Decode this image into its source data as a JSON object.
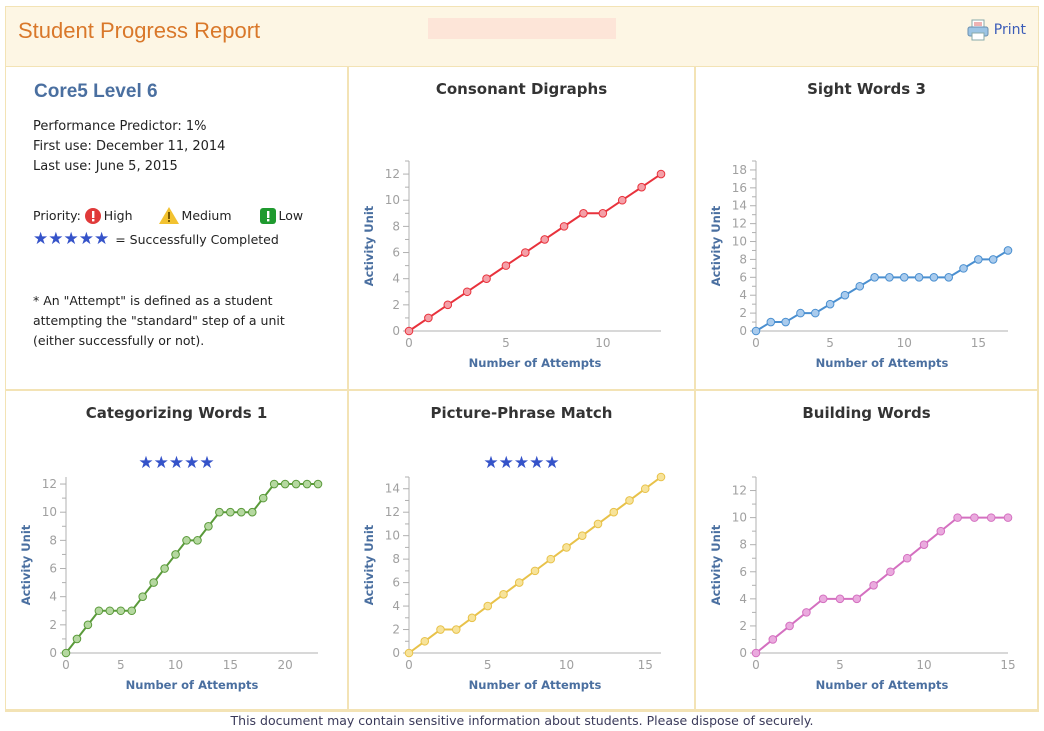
{
  "header": {
    "title": "Student Progress Report",
    "print_label": "Print",
    "print_icon": "printer-icon"
  },
  "summary": {
    "program": "Core5 Level 6",
    "predictor": "Performance Predictor:  1%",
    "first_use": "First use: December 11, 2014",
    "last_use": "Last use: June 5, 2015",
    "priority_label": "Priority:",
    "priority_high": "High",
    "priority_medium": "Medium",
    "priority_low": "Low",
    "stars": "★★★★★",
    "completed_label": "= Successfully Completed",
    "note_1": "* An \"Attempt\" is defined as a student",
    "note_2": "attempting the \"standard\" step of a unit",
    "note_3": "(either successfully or not).",
    "colors": {
      "high": "#e03a3a",
      "medium": "#f2c230",
      "low": "#1f9a2f",
      "stars": "#3553c9"
    }
  },
  "footer": "This document may contain sensitive information about students. Please dispose of securely.",
  "chart_data": [
    {
      "type": "line",
      "title": "Consonant Digraphs",
      "xlabel": "Number of Attempts",
      "ylabel": "Activity Unit",
      "completed": false,
      "x": [
        0,
        1,
        2,
        3,
        4,
        5,
        6,
        7,
        8,
        9,
        10,
        11,
        12,
        13
      ],
      "values": [
        0,
        1,
        2,
        3,
        4,
        5,
        6,
        7,
        8,
        9,
        9,
        10,
        11,
        12
      ],
      "xlim": [
        0,
        13
      ],
      "ylim": [
        0,
        13
      ],
      "xticks": [
        0,
        5,
        10
      ],
      "yticks": [
        0,
        2,
        4,
        6,
        8,
        10,
        12
      ],
      "color": "#e8323c",
      "marker": "#f4a0a8"
    },
    {
      "type": "line",
      "title": "Sight Words 3",
      "xlabel": "Number of Attempts",
      "ylabel": "Activity Unit",
      "completed": false,
      "x": [
        0,
        1,
        2,
        3,
        4,
        5,
        6,
        7,
        8,
        9,
        10,
        11,
        12,
        13,
        14,
        15,
        16,
        17
      ],
      "values": [
        0,
        1,
        1,
        2,
        2,
        3,
        4,
        5,
        6,
        6,
        6,
        6,
        6,
        6,
        7,
        8,
        8,
        9
      ],
      "xlim": [
        0,
        17
      ],
      "ylim": [
        0,
        19
      ],
      "xticks": [
        0,
        5,
        10,
        15
      ],
      "yticks": [
        0,
        2,
        4,
        6,
        8,
        10,
        12,
        14,
        16,
        18
      ],
      "color": "#4a8fd0",
      "marker": "#a9cbed"
    },
    {
      "type": "line",
      "title": "Categorizing Words 1",
      "xlabel": "Number of Attempts",
      "ylabel": "Activity Unit",
      "completed": true,
      "stars": "★★★★★",
      "x": [
        0,
        1,
        2,
        3,
        4,
        5,
        6,
        7,
        8,
        9,
        10,
        11,
        12,
        13,
        14,
        15,
        16,
        17,
        18,
        19,
        20,
        21,
        22,
        23
      ],
      "values": [
        0,
        1,
        2,
        3,
        3,
        3,
        3,
        4,
        5,
        6,
        7,
        8,
        8,
        9,
        10,
        10,
        10,
        10,
        11,
        12,
        12,
        12,
        12,
        12
      ],
      "xlim": [
        0,
        23
      ],
      "ylim": [
        0,
        12.5
      ],
      "xticks": [
        0,
        5,
        10,
        15,
        20
      ],
      "yticks": [
        0,
        2,
        4,
        6,
        8,
        10,
        12
      ],
      "color": "#5a9a3a",
      "marker": "#b5d8a0"
    },
    {
      "type": "line",
      "title": "Picture-Phrase Match",
      "xlabel": "Number of Attempts",
      "ylabel": "Activity Unit",
      "completed": true,
      "stars": "★★★★★",
      "x": [
        0,
        1,
        2,
        3,
        4,
        5,
        6,
        7,
        8,
        9,
        10,
        11,
        12,
        13,
        14,
        15,
        16
      ],
      "values": [
        0,
        1,
        2,
        2,
        3,
        4,
        5,
        6,
        7,
        8,
        9,
        10,
        11,
        12,
        13,
        14,
        15
      ],
      "xlim": [
        0,
        16
      ],
      "ylim": [
        0,
        15
      ],
      "xticks": [
        0,
        5,
        10,
        15
      ],
      "yticks": [
        0,
        2,
        4,
        6,
        8,
        10,
        12,
        14
      ],
      "color": "#e8c24a",
      "marker": "#f7e39a"
    },
    {
      "type": "line",
      "title": "Building Words",
      "xlabel": "Number of Attempts",
      "ylabel": "Activity Unit",
      "completed": false,
      "x": [
        0,
        1,
        2,
        3,
        4,
        5,
        6,
        7,
        8,
        9,
        10,
        11,
        12,
        13,
        14,
        15
      ],
      "values": [
        0,
        1,
        2,
        3,
        4,
        4,
        4,
        5,
        6,
        7,
        8,
        9,
        10,
        10,
        10,
        10
      ],
      "xlim": [
        0,
        15
      ],
      "ylim": [
        0,
        13
      ],
      "xticks": [
        0,
        5,
        10,
        15
      ],
      "yticks": [
        0,
        2,
        4,
        6,
        8,
        10,
        12
      ],
      "color": "#d470c0",
      "marker": "#eaaade"
    }
  ]
}
